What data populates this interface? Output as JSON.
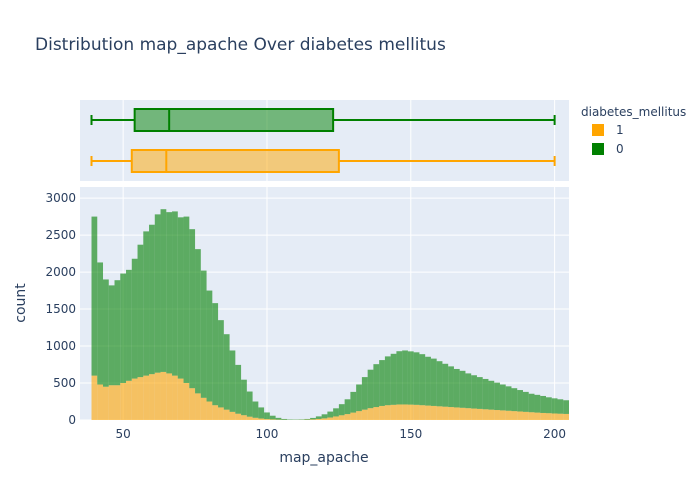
{
  "chart_data": {
    "type": "histogram",
    "title": "Distribution map_apache Over diabetes mellitus",
    "xlabel": "map_apache",
    "ylabel": "count",
    "barmode": "stacked",
    "xlim": [
      35,
      205
    ],
    "ylim": [
      0,
      3150
    ],
    "xticks": [
      50,
      100,
      150,
      200
    ],
    "yticks": [
      0,
      500,
      1000,
      1500,
      2000,
      2500,
      3000
    ],
    "grid": true,
    "legend": {
      "title": "diabetes_mellitus",
      "placement": "right",
      "entries": [
        {
          "name": "1",
          "color": "#FFA500"
        },
        {
          "name": "0",
          "color": "#008000"
        }
      ]
    },
    "bin_width": 2,
    "bin_start": 39,
    "series": [
      {
        "name": "0",
        "color": "#008000",
        "values": [
          2150,
          1650,
          1450,
          1350,
          1420,
          1480,
          1500,
          1620,
          1790,
          1950,
          2020,
          2140,
          2200,
          2180,
          2220,
          2180,
          2250,
          2150,
          1950,
          1720,
          1500,
          1380,
          1180,
          1020,
          830,
          660,
          480,
          340,
          220,
          150,
          90,
          50,
          25,
          12,
          6,
          5,
          6,
          10,
          20,
          35,
          55,
          80,
          110,
          150,
          200,
          280,
          360,
          440,
          520,
          580,
          620,
          660,
          690,
          720,
          730,
          720,
          710,
          690,
          660,
          640,
          610,
          580,
          550,
          520,
          500,
          470,
          450,
          430,
          410,
          390,
          370,
          350,
          330,
          310,
          290,
          270,
          250,
          240,
          230,
          215,
          205,
          195,
          185,
          175,
          165,
          160,
          150,
          140,
          130,
          125,
          120,
          115,
          110,
          105,
          100,
          95,
          90,
          90,
          90,
          92,
          95,
          98,
          100,
          105,
          110,
          115,
          120,
          125,
          130,
          135,
          140,
          140,
          135,
          130,
          130,
          140,
          150,
          160,
          170,
          180,
          190,
          200,
          210
        ]
      },
      {
        "name": "1",
        "color": "#FFA500",
        "values": [
          600,
          480,
          450,
          470,
          470,
          500,
          530,
          560,
          580,
          600,
          620,
          640,
          650,
          630,
          600,
          560,
          500,
          430,
          360,
          300,
          250,
          200,
          170,
          140,
          110,
          85,
          65,
          45,
          30,
          20,
          12,
          8,
          4,
          2,
          1,
          1,
          2,
          4,
          8,
          14,
          22,
          34,
          48,
          64,
          80,
          100,
          120,
          140,
          160,
          175,
          190,
          200,
          205,
          210,
          210,
          208,
          205,
          200,
          195,
          190,
          185,
          180,
          175,
          170,
          165,
          160,
          155,
          150,
          145,
          140,
          135,
          130,
          125,
          120,
          115,
          110,
          105,
          100,
          95,
          92,
          88,
          85,
          82,
          80,
          78,
          75,
          72,
          70,
          68,
          66,
          64,
          62,
          60,
          58,
          56,
          55,
          54,
          53,
          52,
          51,
          50,
          50,
          50,
          50,
          50,
          50,
          50,
          50,
          50,
          50,
          50,
          50,
          50,
          50,
          50,
          50,
          50,
          50,
          50,
          50,
          50,
          50,
          50,
          50
        ]
      }
    ],
    "boxplots": [
      {
        "name": "0",
        "color": "#008000",
        "fill": "rgba(0,128,0,0.5)",
        "min": 39,
        "q1": 54,
        "median": 66,
        "q3": 123,
        "max": 200
      },
      {
        "name": "1",
        "color": "#FFA500",
        "fill": "rgba(255,165,0,0.5)",
        "min": 39,
        "q1": 53,
        "median": 65,
        "q3": 125,
        "max": 200
      }
    ]
  }
}
